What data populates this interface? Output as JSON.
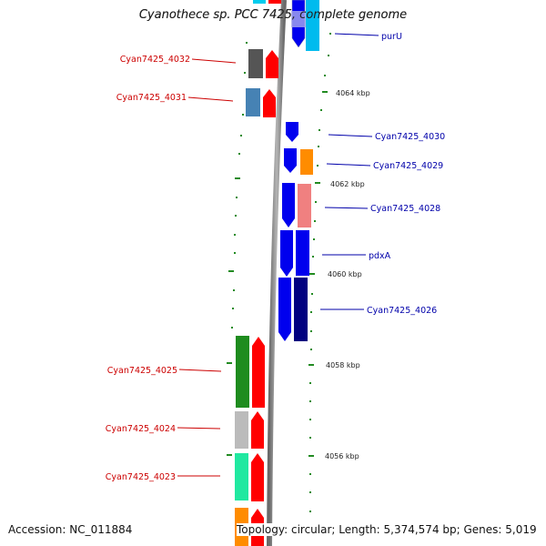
{
  "title": "Cyanothece sp. PCC 7425, complete genome",
  "accession_text": "Accession: NC_011884",
  "topology_text": "Topology: circular; Length: 5,374,574 bp; Genes: 5,019",
  "colors": {
    "backbone": "#888888",
    "tick": "#228b22",
    "left_label": "#cc0000",
    "right_label": "#0000aa"
  },
  "left_labels": [
    "Cyan7425_4032",
    "Cyan7425_4031",
    "Cyan7425_4025",
    "Cyan7425_4024",
    "Cyan7425_4023"
  ],
  "right_labels": [
    "purU",
    "Cyan7425_4030",
    "Cyan7425_4029",
    "Cyan7425_4028",
    "pdxA",
    "Cyan7425_4026"
  ],
  "kbp_labels": [
    "4064 kbp",
    "4062 kbp",
    "4060 kbp",
    "4058 kbp",
    "4056 kbp"
  ]
}
